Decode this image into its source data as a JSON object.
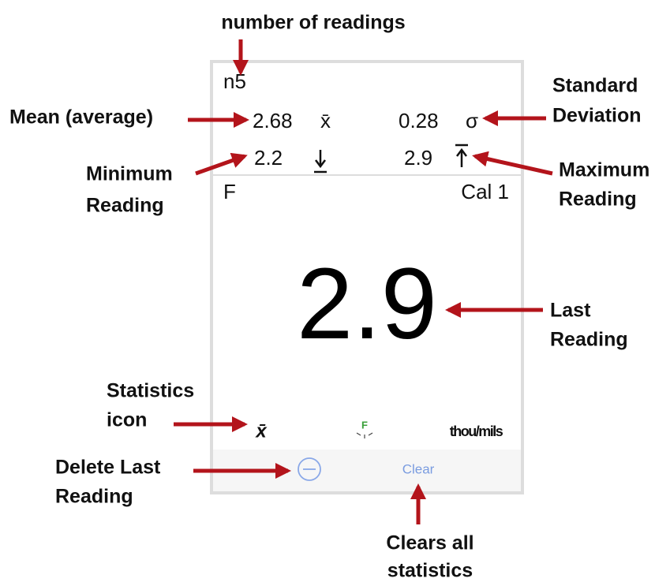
{
  "annotations": {
    "readings_count": "number of readings",
    "mean": "Mean (average)",
    "std_dev": [
      "Standard",
      "Deviation"
    ],
    "minimum": [
      "Minimum",
      "Reading"
    ],
    "maximum": [
      "Maximum",
      "Reading"
    ],
    "last": [
      "Last",
      "Reading"
    ],
    "stats_icon": [
      "Statistics",
      "icon"
    ],
    "delete_last": [
      "Delete Last",
      "Reading"
    ],
    "clears_all": [
      "Clears all",
      "statistics"
    ]
  },
  "screen": {
    "count": "n5",
    "mean": {
      "value": "2.68",
      "symbol": "x̄"
    },
    "std_dev": {
      "value": "0.28",
      "symbol": "σ"
    },
    "minimum": "2.2",
    "maximum": "2.9",
    "probe": "F",
    "calibration": "Cal 1",
    "last_reading": "2.9",
    "toolbar": {
      "stats": "x̄",
      "probe": "F",
      "units": "thou/mils"
    },
    "clear": "Clear"
  }
}
